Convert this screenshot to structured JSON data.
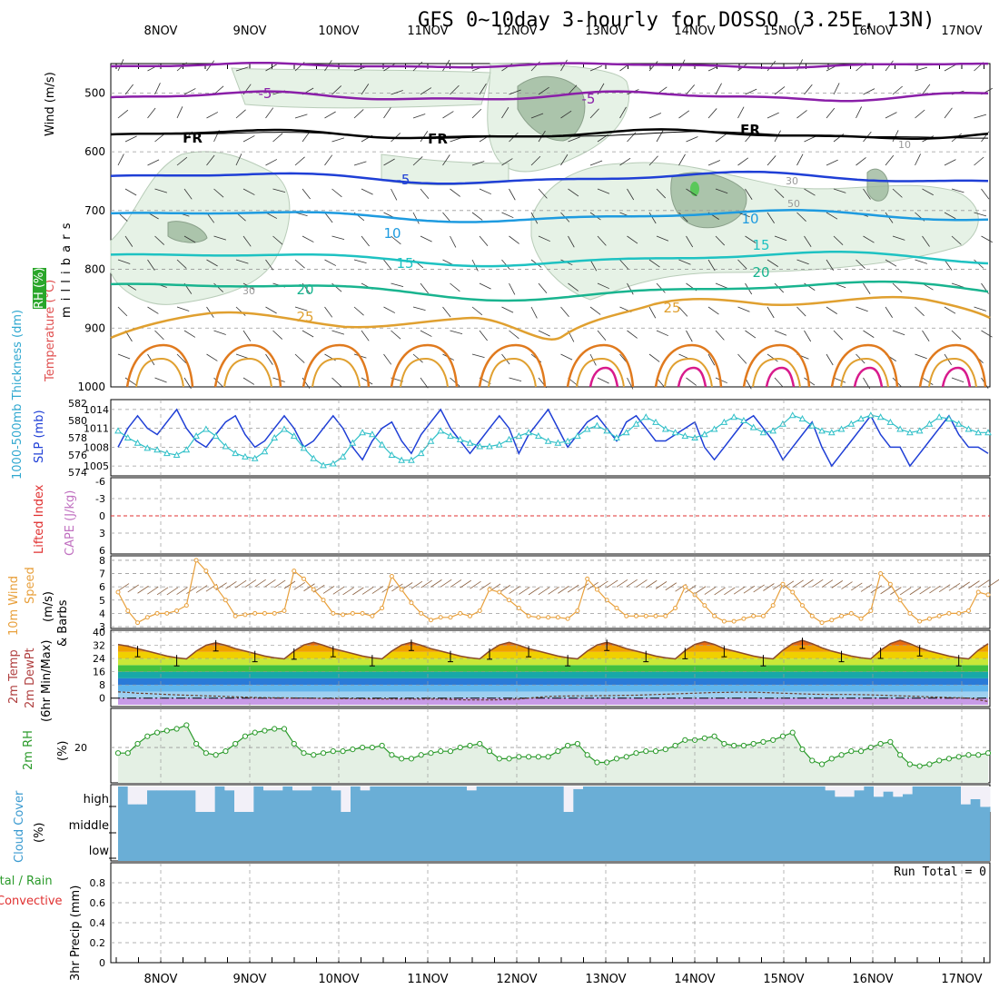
{
  "title": "GFS 0~10day 3-hourly for DOSSO (3.25E, 13N)",
  "x_tick_labels": [
    "8NOV",
    "9NOV",
    "10NOV",
    "11NOV",
    "12NOV",
    "13NOV",
    "14NOV",
    "15NOV",
    "16NOV",
    "17NOV"
  ],
  "colors": {
    "purple": "#8a1fa8",
    "black": "#000000",
    "blue": "#1f3fd6",
    "lightblue": "#1e9be0",
    "cyan": "#1ec2c2",
    "teal": "#19b48f",
    "orange": "#e0a030",
    "darkorange": "#e07a1e",
    "magenta": "#d81a8c",
    "rh_fill": "#e6f2e6",
    "rh_fill_dark": "#9cb89c",
    "cloud": "#6aaed6",
    "temp_line": "#8b4a2b",
    "grid": "#999999",
    "wind10": "#e8a03c",
    "rh2m": "#2a9a2a",
    "slp": "#1f3fd6",
    "thick": "#30c0c8"
  },
  "chart_data": [
    {
      "id": "upper-air",
      "type": "contour",
      "ylabel": "m i l l i b a r s",
      "side_labels": [
        "Wind (m/s)",
        "Temperature (°C)",
        "RH (%)"
      ],
      "y_ticks": [
        500,
        600,
        700,
        800,
        900,
        1000
      ],
      "ylim": [
        450,
        1000
      ],
      "contour_labels": [
        {
          "text": "-5",
          "color": "purple"
        },
        {
          "text": "-5",
          "color": "purple"
        },
        {
          "text": "FR",
          "color": "black"
        },
        {
          "text": "FR",
          "color": "black"
        },
        {
          "text": "FR",
          "color": "black"
        },
        {
          "text": "-5",
          "color": "blue"
        },
        {
          "text": "10",
          "color": "lightblue"
        },
        {
          "text": "10",
          "color": "lightblue"
        },
        {
          "text": "15",
          "color": "cyan"
        },
        {
          "text": "15",
          "color": "cyan"
        },
        {
          "text": "20",
          "color": "teal"
        },
        {
          "text": "20",
          "color": "teal"
        },
        {
          "text": "25",
          "color": "orange"
        },
        {
          "text": "25",
          "color": "orange"
        },
        {
          "text": "10",
          "color": "grid"
        },
        {
          "text": "30",
          "color": "grid"
        },
        {
          "text": "50",
          "color": "grid"
        },
        {
          "text": "30",
          "color": "grid"
        }
      ]
    },
    {
      "id": "thickness-slp",
      "type": "line",
      "side_labels": [
        "1000-500mb Thickness (dm)",
        "SLP (mb)"
      ],
      "left_ticks": [
        574,
        576,
        578,
        580,
        582
      ],
      "right_ticks": [
        1005,
        1008,
        1011,
        1014
      ],
      "slp_ylim": [
        1004,
        1015
      ],
      "thick_ylim": [
        574,
        582
      ],
      "slp": [
        1008,
        1011,
        1013,
        1011,
        1010,
        1012,
        1014,
        1011,
        1009,
        1008,
        1010,
        1012,
        1013,
        1010,
        1008,
        1009,
        1011,
        1013,
        1011,
        1008,
        1009,
        1011,
        1013,
        1011,
        1008,
        1006,
        1009,
        1011,
        1012,
        1009,
        1007,
        1010,
        1012,
        1014,
        1011,
        1009,
        1007,
        1009,
        1011,
        1013,
        1011,
        1007,
        1010,
        1012,
        1014,
        1011,
        1008,
        1010,
        1012,
        1013,
        1011,
        1009,
        1012,
        1013,
        1011,
        1009,
        1009,
        1010,
        1011,
        1012,
        1008,
        1006,
        1008,
        1010,
        1012,
        1013,
        1011,
        1009,
        1006,
        1008,
        1010,
        1012,
        1008,
        1005,
        1007,
        1009,
        1011,
        1013,
        1010,
        1008,
        1008,
        1005,
        1007,
        1009,
        1011,
        1013,
        1010,
        1008,
        1008,
        1007
      ],
      "thick": [
        578.8,
        578.0,
        577.4,
        576.8,
        576.6,
        576.2,
        576.0,
        576.6,
        578.2,
        579.0,
        578.2,
        577.0,
        576.2,
        575.8,
        575.6,
        576.4,
        578.0,
        579.0,
        578.2,
        576.8,
        575.6,
        574.8,
        575.0,
        575.8,
        577.4,
        578.6,
        578.4,
        577.2,
        576.0,
        575.4,
        575.4,
        576.2,
        577.6,
        578.8,
        578.2,
        577.8,
        577.4,
        577.0,
        577.0,
        577.2,
        577.8,
        578.2,
        578.6,
        578.2,
        577.6,
        577.4,
        577.6,
        578.2,
        579.0,
        579.4,
        578.8,
        578.0,
        578.6,
        579.6,
        580.4,
        579.8,
        579.0,
        578.6,
        578.2,
        578.0,
        578.4,
        579.0,
        579.8,
        580.4,
        580.0,
        579.2,
        578.6,
        578.8,
        579.6,
        580.6,
        580.2,
        579.4,
        578.8,
        578.6,
        579.0,
        579.6,
        580.2,
        580.6,
        580.4,
        579.8,
        579.0,
        578.6,
        578.8,
        579.6,
        580.4,
        580.2,
        579.6,
        579.0,
        578.6,
        578.6
      ]
    },
    {
      "id": "lifted-cape",
      "type": "line",
      "side_labels": [
        "Lifted Index",
        "CAPE (J/kg)"
      ],
      "left_ticks": [
        "-6",
        "-3",
        "0",
        "3",
        "6"
      ],
      "ylim": [
        -6,
        6
      ],
      "lifted_index_zero": 0
    },
    {
      "id": "wind-10m",
      "type": "line",
      "side_labels": [
        "10m Wind",
        "Speed",
        "(m/s)",
        "& Barbs"
      ],
      "left_ticks": [
        3,
        4,
        5,
        6,
        7,
        8
      ],
      "ylim": [
        3,
        8.2
      ],
      "speed": [
        5.6,
        4.2,
        3.3,
        3.7,
        4.0,
        4.0,
        4.2,
        4.6,
        8.0,
        7.2,
        6.0,
        5.0,
        3.8,
        3.9,
        4.0,
        4.0,
        4.0,
        4.2,
        7.2,
        6.6,
        5.8,
        5.0,
        4.0,
        3.9,
        4.0,
        4.0,
        3.8,
        4.4,
        6.8,
        5.8,
        4.8,
        4.0,
        3.5,
        3.7,
        3.7,
        4.0,
        3.8,
        4.2,
        5.8,
        5.6,
        5.0,
        4.4,
        3.8,
        3.7,
        3.7,
        3.7,
        3.6,
        4.2,
        6.6,
        5.8,
        5.0,
        4.4,
        3.8,
        3.8,
        3.8,
        3.8,
        3.8,
        4.4,
        6.0,
        5.4,
        4.6,
        3.8,
        3.4,
        3.4,
        3.6,
        3.8,
        3.8,
        4.6,
        6.2,
        5.6,
        4.6,
        3.8,
        3.3,
        3.5,
        3.8,
        4.0,
        3.6,
        4.2,
        7.0,
        6.2,
        5.0,
        4.0,
        3.4,
        3.6,
        3.8,
        4.0,
        4.0,
        4.2,
        5.6,
        5.4
      ]
    },
    {
      "id": "temp-2m",
      "type": "area",
      "side_labels": [
        "2m Temp",
        "2m DewPt",
        "(6hr Min/Max)"
      ],
      "left_ticks": [
        0,
        8,
        16,
        24,
        32,
        40
      ],
      "ylim": [
        -4,
        40
      ],
      "temp": [
        32.5,
        31.5,
        30.0,
        28.5,
        27.0,
        25.5,
        24.5,
        23.8,
        28.5,
        32.0,
        33.5,
        32.0,
        30.0,
        28.5,
        27.0,
        25.5,
        24.5,
        23.8,
        28.5,
        32.2,
        33.8,
        32.0,
        30.0,
        28.5,
        27.0,
        25.5,
        24.5,
        23.8,
        28.5,
        32.2,
        33.8,
        32.0,
        30.0,
        28.5,
        27.0,
        25.5,
        24.5,
        23.8,
        28.5,
        32.2,
        33.8,
        32.0,
        30.0,
        28.5,
        27.0,
        25.5,
        24.5,
        23.8,
        28.5,
        32.2,
        33.8,
        32.0,
        30.0,
        28.5,
        27.0,
        25.5,
        24.5,
        23.8,
        28.8,
        32.5,
        34.2,
        32.5,
        30.0,
        28.5,
        27.0,
        25.5,
        24.5,
        23.8,
        29.0,
        33.0,
        35.0,
        33.0,
        30.5,
        28.5,
        27.0,
        25.5,
        24.5,
        23.8,
        29.0,
        33.0,
        35.0,
        33.0,
        30.5,
        28.5,
        27.0,
        25.5,
        24.5,
        23.8,
        29.0,
        33.0
      ],
      "dewpt": [
        3.8,
        3.5,
        3.0,
        2.8,
        2.5,
        2.2,
        2.0,
        1.8,
        1.6,
        1.4,
        1.2,
        1.0,
        0.8,
        0.6,
        0.4,
        0.3,
        0.2,
        0.2,
        0.1,
        0.0,
        -0.1,
        -0.2,
        -0.2,
        -0.3,
        -0.3,
        -0.4,
        -0.4,
        -0.5,
        -0.5,
        -0.6,
        -0.6,
        -0.6,
        -0.6,
        -0.6,
        -0.8,
        -1.0,
        -1.1,
        -1.1,
        -1.1,
        -1.0,
        -0.8,
        -0.6,
        0.0,
        0.6,
        1.0,
        1.2,
        1.3,
        1.4,
        1.4,
        1.5,
        1.5,
        1.6,
        1.7,
        1.8,
        2.0,
        2.2,
        2.4,
        2.6,
        2.8,
        3.0,
        3.2,
        3.4,
        3.5,
        3.6,
        3.6,
        3.6,
        3.4,
        3.2,
        3.0,
        2.8,
        2.6,
        2.4,
        2.3,
        2.2,
        2.2,
        2.2,
        2.1,
        2.0,
        1.8,
        1.6,
        1.4,
        1.2,
        1.0,
        0.8,
        0.6,
        0.4,
        0.2,
        0.0,
        -1.0,
        -2.0
      ]
    },
    {
      "id": "rh-2m",
      "type": "area",
      "side_labels": [
        "2m RH",
        "(%)"
      ],
      "left_ticks": [
        20
      ],
      "ylim": [
        2,
        40
      ],
      "rh": [
        17,
        17,
        22,
        26,
        28,
        29,
        30,
        32,
        22,
        17,
        16,
        18,
        22,
        26,
        28,
        29,
        30,
        30,
        22,
        17,
        16,
        17,
        18,
        18,
        19,
        20,
        20,
        21,
        16,
        14,
        14,
        16,
        17,
        18,
        18,
        20,
        21,
        22,
        18,
        14,
        14,
        15,
        15,
        15,
        15,
        18,
        21,
        22,
        16,
        12,
        12,
        14,
        15,
        17,
        18,
        18,
        19,
        21,
        24,
        24,
        25,
        26,
        22,
        21,
        21,
        22,
        23,
        24,
        26,
        28,
        19,
        13,
        11,
        14,
        16,
        18,
        18,
        20,
        22,
        23,
        16,
        11,
        10,
        11,
        13,
        14,
        15,
        16,
        16,
        17
      ]
    },
    {
      "id": "cloud-cover",
      "type": "bar",
      "side_labels": [
        "Cloud Cover",
        "(%)"
      ],
      "y_tick_labels": [
        "high",
        "middle",
        "low"
      ],
      "ylim": [
        0,
        300
      ],
      "high": [
        100,
        30,
        30,
        85,
        85,
        85,
        85,
        85,
        0,
        0,
        100,
        85,
        0,
        0,
        100,
        85,
        85,
        100,
        85,
        85,
        100,
        100,
        85,
        0,
        100,
        85,
        100,
        100,
        100,
        100,
        100,
        100,
        100,
        100,
        100,
        100,
        85,
        100,
        100,
        100,
        100,
        100,
        100,
        100,
        100,
        100,
        0,
        90,
        100,
        100,
        100,
        100,
        100,
        100,
        100,
        100,
        100,
        100,
        100,
        100,
        100,
        100,
        100,
        100,
        100,
        100,
        100,
        100,
        100,
        100,
        100,
        100,
        100,
        85,
        60,
        60,
        85,
        100,
        60,
        80,
        60,
        70,
        100,
        100,
        100,
        100,
        100,
        30,
        50,
        20
      ]
    },
    {
      "id": "precip",
      "type": "bar",
      "side_labels": [
        "Total / Rain",
        "Convective",
        "3hr Precip (mm)"
      ],
      "left_ticks": [
        "0",
        "0.2",
        "0.4",
        "0.6",
        "0.8"
      ],
      "ylim": [
        0,
        1
      ],
      "run_total_label": "Run Total = 0",
      "values": []
    }
  ]
}
